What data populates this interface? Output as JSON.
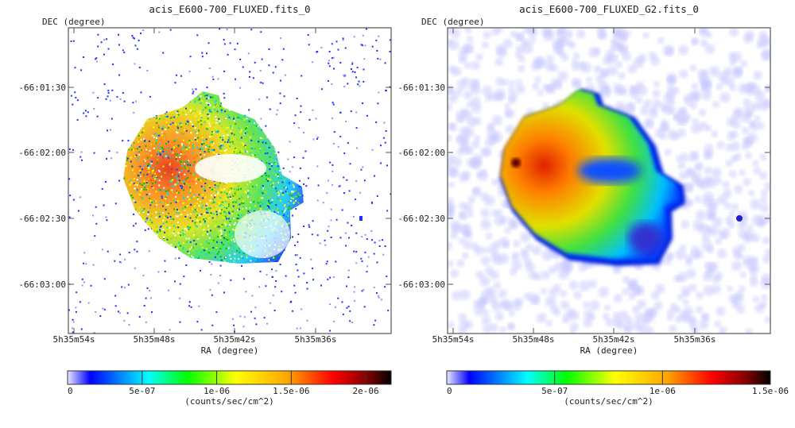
{
  "chart_data": [
    {
      "type": "heatmap",
      "title": "acis_E600-700_FLUXED.fits_0",
      "xlabel": "RA (degree)",
      "ylabel": "DEC (degree)",
      "x_ticks": [
        "5h35m54s",
        "5h35m48s",
        "5h35m42s",
        "5h35m36s"
      ],
      "y_ticks": [
        "-66:01:30",
        "-66:02:00",
        "-66:02:30",
        "-66:03:00"
      ],
      "style": "raw-counts",
      "colorbar": {
        "label": "(counts/sec/cm^2)",
        "ticks": [
          "0",
          "5e-07",
          "1e-06",
          "1.5e-06",
          "2e-06"
        ],
        "tick_values": [
          0,
          5e-07,
          1e-06,
          1.5e-06,
          2e-06
        ],
        "range": [
          0,
          2.17e-06
        ],
        "colormap": [
          "#e8e8ff",
          "#0000ff",
          "#00ffff",
          "#00ff00",
          "#ffff00",
          "#ffa500",
          "#ff0000",
          "#8b0000",
          "#000000"
        ]
      }
    },
    {
      "type": "heatmap",
      "title": "acis_E600-700_FLUXED_G2.fits_0",
      "xlabel": "RA (degree)",
      "ylabel": "DEC (degree)",
      "x_ticks": [
        "5h35m54s",
        "5h35m48s",
        "5h35m42s",
        "5h35m36s"
      ],
      "y_ticks": [
        "-66:01:30",
        "-66:02:00",
        "-66:02:30",
        "-66:03:00"
      ],
      "style": "smoothed",
      "colorbar": {
        "label": "(counts/sec/cm^2)",
        "ticks": [
          "0",
          "5e-07",
          "1e-06",
          "1.5e-06"
        ],
        "tick_values": [
          0,
          5e-07,
          1e-06,
          1.5e-06
        ],
        "range": [
          0,
          1.5e-06
        ],
        "colormap": [
          "#e8e8ff",
          "#0000ff",
          "#00ffff",
          "#00ff00",
          "#ffff00",
          "#ffa500",
          "#ff0000",
          "#8b0000",
          "#000000"
        ]
      }
    }
  ]
}
